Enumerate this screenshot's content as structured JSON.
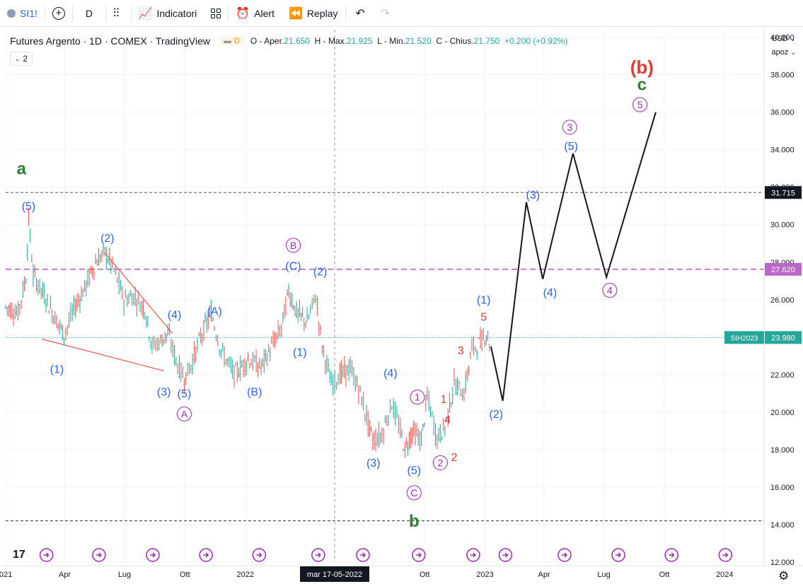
{
  "toolbar": {
    "symbol": "SI1!",
    "interval": "D",
    "indicators_label": "Indicatori",
    "alert_label": "Alert",
    "replay_label": "Replay"
  },
  "legend": {
    "title": "Futures Argento · 1D · COMEX · TradingView",
    "badge": "D",
    "o_label": "O - Aper.",
    "o_val": "21.650",
    "h_label": "H - Max.",
    "h_val": "21.925",
    "l_label": "L - Min.",
    "l_val": "21.520",
    "c_label": "C - Chius.",
    "c_val": "21.750",
    "change": "+0.200 (+0.92%)",
    "indicator_count": "2"
  },
  "price_axis": {
    "currency": "USD",
    "unit": "apoz"
  },
  "colors": {
    "bull": "#26a69a",
    "bear": "#ef5350",
    "blue": "#2962ff",
    "purple": "#9c27b0",
    "green": "#2e7d32",
    "red": "#e53935",
    "dashed_purple": "#ba68c8",
    "axis_text": "#131722"
  },
  "chart_data": {
    "type": "line",
    "title": "Futures Argento · 1D · COMEX · TradingView",
    "ylim": [
      12.0,
      40.4
    ],
    "xlim": [
      "2021-01-01",
      "2024-03-01"
    ],
    "y_ticks": [
      "12.000",
      "14.000",
      "16.000",
      "18.000",
      "20.000",
      "22.000",
      "24.000",
      "26.000",
      "28.000",
      "30.000",
      "32.000",
      "34.000",
      "36.000",
      "38.000",
      "40.000"
    ],
    "y_tick_values": [
      12,
      14,
      16,
      18,
      20,
      22,
      24,
      26,
      28,
      30,
      32,
      34,
      36,
      38,
      40
    ],
    "x_ticks": [
      {
        "label": "021",
        "date": "2021-01-01"
      },
      {
        "label": "Apr",
        "date": "2021-04-01"
      },
      {
        "label": "Lug",
        "date": "2021-07-01"
      },
      {
        "label": "Ott",
        "date": "2021-10-01"
      },
      {
        "label": "2022",
        "date": "2022-01-01"
      },
      {
        "label": "Ott",
        "date": "2022-10-01"
      },
      {
        "label": "2023",
        "date": "2023-01-01"
      },
      {
        "label": "Apr",
        "date": "2023-04-01"
      },
      {
        "label": "Lug",
        "date": "2023-07-01"
      },
      {
        "label": "Ott",
        "date": "2023-10-01"
      },
      {
        "label": "2024",
        "date": "2024-01-01"
      }
    ],
    "crosshair": {
      "date": "2022-05-17",
      "label": "mar 17-05-2022"
    },
    "price_series": {
      "name": "SIH2023",
      "points": [
        [
          "2021-01-01",
          25.6
        ],
        [
          "2021-01-20",
          25.3
        ],
        [
          "2021-02-01",
          27.2
        ],
        [
          "2021-02-05",
          30.3
        ],
        [
          "2021-02-12",
          27.3
        ],
        [
          "2021-03-01",
          26.2
        ],
        [
          "2021-03-15",
          25.2
        ],
        [
          "2021-03-31",
          24.1
        ],
        [
          "2021-04-15",
          25.5
        ],
        [
          "2021-05-01",
          26.6
        ],
        [
          "2021-05-18",
          28.0
        ],
        [
          "2021-06-01",
          28.5
        ],
        [
          "2021-06-15",
          27.6
        ],
        [
          "2021-06-30",
          26.0
        ],
        [
          "2021-07-15",
          26.2
        ],
        [
          "2021-08-01",
          25.5
        ],
        [
          "2021-08-12",
          23.5
        ],
        [
          "2021-08-25",
          23.8
        ],
        [
          "2021-09-05",
          24.2
        ],
        [
          "2021-09-20",
          22.5
        ],
        [
          "2021-09-30",
          21.8
        ],
        [
          "2021-10-10",
          22.5
        ],
        [
          "2021-10-25",
          24.0
        ],
        [
          "2021-11-10",
          25.3
        ],
        [
          "2021-11-25",
          23.3
        ],
        [
          "2021-12-15",
          22.0
        ],
        [
          "2022-01-05",
          22.8
        ],
        [
          "2022-01-25",
          22.4
        ],
        [
          "2022-02-10",
          23.5
        ],
        [
          "2022-02-25",
          24.5
        ],
        [
          "2022-03-08",
          26.5
        ],
        [
          "2022-03-20",
          25.3
        ],
        [
          "2022-04-05",
          24.8
        ],
        [
          "2022-04-18",
          26.2
        ],
        [
          "2022-04-28",
          23.5
        ],
        [
          "2022-05-12",
          21.5
        ],
        [
          "2022-05-25",
          22.0
        ],
        [
          "2022-06-10",
          22.3
        ],
        [
          "2022-06-25",
          21.0
        ],
        [
          "2022-07-14",
          18.5
        ],
        [
          "2022-07-28",
          18.8
        ],
        [
          "2022-08-12",
          20.5
        ],
        [
          "2022-08-25",
          19.0
        ],
        [
          "2022-09-01",
          18.0
        ],
        [
          "2022-09-12",
          19.0
        ],
        [
          "2022-09-26",
          18.5
        ],
        [
          "2022-10-05",
          20.8
        ],
        [
          "2022-10-20",
          18.6
        ],
        [
          "2022-11-01",
          19.2
        ],
        [
          "2022-11-15",
          21.5
        ],
        [
          "2022-11-30",
          21.0
        ],
        [
          "2022-12-12",
          23.4
        ],
        [
          "2022-12-25",
          23.7
        ],
        [
          "2023-01-03",
          24.2
        ],
        [
          "2023-01-10",
          23.5
        ]
      ]
    },
    "projection": {
      "points": [
        [
          "2023-01-10",
          23.5
        ],
        [
          "2023-01-28",
          20.6
        ],
        [
          "2023-03-05",
          31.2
        ],
        [
          "2023-03-30",
          27.1
        ],
        [
          "2023-05-15",
          33.8
        ],
        [
          "2023-07-05",
          27.2
        ],
        [
          "2023-09-18",
          36.0
        ]
      ]
    },
    "lines": [
      {
        "price": 27.62,
        "label": "27.620",
        "style": "dashed",
        "color": "#ba68c8"
      },
      {
        "price": 23.98,
        "label": "23.980",
        "name": "SIH2023",
        "style": "dotted",
        "color": "#26a69a"
      },
      {
        "price": 31.715,
        "label": "31.715",
        "style": "dashed",
        "color": "#555555"
      },
      {
        "price": 14.2,
        "style": "dashed",
        "color": "#333333"
      }
    ],
    "trend_lines": [
      {
        "p1": [
          "2021-06-01",
          28.5
        ],
        "p2": [
          "2021-09-12",
          24.2
        ],
        "color": "#ef5350"
      },
      {
        "p1": [
          "2021-02-25",
          23.9
        ],
        "p2": [
          "2021-08-30",
          22.2
        ],
        "color": "#ef5350"
      }
    ],
    "wave_labels": [
      {
        "text": "a",
        "date": "2021-01-25",
        "price": 33.0,
        "style": "letter-green"
      },
      {
        "text": "(5)",
        "date": "2021-02-05",
        "price": 31.0,
        "style": "blue"
      },
      {
        "text": "(2)",
        "date": "2021-06-05",
        "price": 29.3,
        "style": "blue"
      },
      {
        "text": "(1)",
        "date": "2021-03-20",
        "price": 22.3,
        "style": "blue"
      },
      {
        "text": "(3)",
        "date": "2021-08-30",
        "price": 21.1,
        "style": "blue"
      },
      {
        "text": "(4)",
        "date": "2021-09-15",
        "price": 25.2,
        "style": "blue"
      },
      {
        "text": "(5)",
        "date": "2021-09-30",
        "price": 21.0,
        "style": "blue"
      },
      {
        "text": "A",
        "date": "2021-09-30",
        "price": 19.9,
        "style": "circle-purple"
      },
      {
        "text": "(A)",
        "date": "2021-11-15",
        "price": 25.4,
        "style": "blue"
      },
      {
        "text": "(B)",
        "date": "2022-01-15",
        "price": 21.1,
        "style": "blue"
      },
      {
        "text": "B",
        "date": "2022-03-15",
        "price": 28.9,
        "style": "circle-purple"
      },
      {
        "text": "(C)",
        "date": "2022-03-15",
        "price": 27.8,
        "style": "blue"
      },
      {
        "text": "(2)",
        "date": "2022-04-25",
        "price": 27.5,
        "style": "blue"
      },
      {
        "text": "(1)",
        "date": "2022-03-25",
        "price": 23.2,
        "style": "blue"
      },
      {
        "text": "(4)",
        "date": "2022-08-10",
        "price": 22.1,
        "style": "blue"
      },
      {
        "text": "(3)",
        "date": "2022-07-15",
        "price": 17.3,
        "style": "blue"
      },
      {
        "text": "(5)",
        "date": "2022-09-15",
        "price": 16.9,
        "style": "blue"
      },
      {
        "text": "C",
        "date": "2022-09-15",
        "price": 15.7,
        "style": "circle-purple"
      },
      {
        "text": "b",
        "date": "2022-09-15",
        "price": 14.2,
        "style": "letter-green"
      },
      {
        "text": "1",
        "date": "2022-09-20",
        "price": 20.8,
        "style": "circle-purple"
      },
      {
        "text": "2",
        "date": "2022-10-25",
        "price": 17.3,
        "style": "circle-purple"
      },
      {
        "text": "1",
        "date": "2022-10-30",
        "price": 20.7,
        "style": "red"
      },
      {
        "text": "2",
        "date": "2022-11-15",
        "price": 17.6,
        "style": "red"
      },
      {
        "text": "3",
        "date": "2022-11-25",
        "price": 23.3,
        "style": "red"
      },
      {
        "text": "4",
        "date": "2022-11-05",
        "price": 19.6,
        "style": "red"
      },
      {
        "text": "5",
        "date": "2022-12-30",
        "price": 25.1,
        "style": "red"
      },
      {
        "text": "(1)",
        "date": "2022-12-30",
        "price": 26.0,
        "style": "blue"
      },
      {
        "text": "(2)",
        "date": "2023-01-18",
        "price": 19.9,
        "style": "blue"
      },
      {
        "text": "(3)",
        "date": "2023-03-15",
        "price": 31.6,
        "style": "blue"
      },
      {
        "text": "(4)",
        "date": "2023-04-10",
        "price": 26.4,
        "style": "blue"
      },
      {
        "text": "3",
        "date": "2023-05-10",
        "price": 35.2,
        "style": "circle-purple"
      },
      {
        "text": "(5)",
        "date": "2023-05-12",
        "price": 34.2,
        "style": "blue"
      },
      {
        "text": "4",
        "date": "2023-07-10",
        "price": 26.5,
        "style": "circle-purple"
      },
      {
        "text": "5",
        "date": "2023-08-25",
        "price": 36.4,
        "style": "circle-purple"
      },
      {
        "text": "c",
        "date": "2023-08-28",
        "price": 37.5,
        "style": "letter-green"
      },
      {
        "text": "(b)",
        "date": "2023-08-28",
        "price": 38.4,
        "style": "letter-red"
      }
    ]
  }
}
